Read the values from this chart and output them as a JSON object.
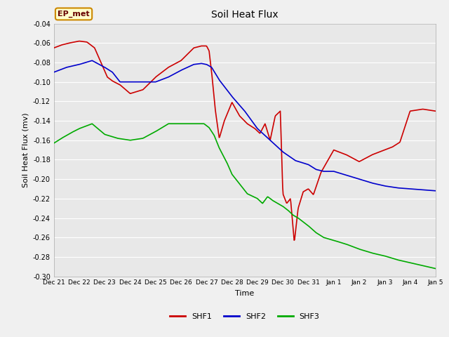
{
  "title": "Soil Heat Flux",
  "ylabel": "Soil Heat Flux (mv)",
  "xlabel": "Time",
  "annotation": "EP_met",
  "ylim": [
    -0.3,
    -0.04
  ],
  "yticks": [
    -0.3,
    -0.28,
    -0.26,
    -0.24,
    -0.22,
    -0.2,
    -0.18,
    -0.16,
    -0.14,
    -0.12,
    -0.1,
    -0.08,
    -0.06,
    -0.04
  ],
  "xtick_labels": [
    "Dec 21",
    "Dec 22",
    "Dec 23",
    "Dec 24",
    "Dec 25",
    "Dec 26",
    "Dec 27",
    "Dec 28",
    "Dec 29",
    "Dec 30",
    "Dec 31",
    "Jan 1",
    "Jan 2",
    "Jan 3",
    "Jan 4",
    "Jan 5"
  ],
  "colors": {
    "SHF1": "#cc0000",
    "SHF2": "#0000cc",
    "SHF3": "#00aa00",
    "fig_bg": "#f0f0f0",
    "plot_bg": "#e8e8e8",
    "grid": "#ffffff",
    "annotation_bg": "#ffffcc",
    "annotation_border": "#cc8800",
    "annotation_text": "#660000"
  },
  "legend_entries": [
    "SHF1",
    "SHF2",
    "SHF3"
  ],
  "shf1_cp_x": [
    0,
    0.3,
    0.6,
    1.0,
    1.3,
    1.6,
    1.9,
    2.1,
    2.3,
    2.6,
    3.0,
    3.5,
    4.0,
    4.5,
    5.0,
    5.5,
    5.8,
    6.0,
    6.1,
    6.2,
    6.35,
    6.5,
    6.7,
    7.0,
    7.3,
    7.6,
    7.9,
    8.1,
    8.3,
    8.5,
    8.7,
    8.9,
    9.0,
    9.15,
    9.3,
    9.45,
    9.6,
    9.8,
    10.0,
    10.2,
    10.5,
    11.0,
    11.5,
    12.0,
    12.5,
    13.0,
    13.3,
    13.6,
    14.0,
    14.5,
    15.0
  ],
  "shf1_cp_y": [
    -0.065,
    -0.062,
    -0.06,
    -0.058,
    -0.059,
    -0.065,
    -0.083,
    -0.095,
    -0.099,
    -0.103,
    -0.112,
    -0.108,
    -0.095,
    -0.085,
    -0.078,
    -0.065,
    -0.063,
    -0.063,
    -0.068,
    -0.09,
    -0.13,
    -0.158,
    -0.14,
    -0.121,
    -0.135,
    -0.143,
    -0.148,
    -0.153,
    -0.143,
    -0.16,
    -0.135,
    -0.13,
    -0.215,
    -0.225,
    -0.22,
    -0.265,
    -0.23,
    -0.213,
    -0.21,
    -0.216,
    -0.193,
    -0.17,
    -0.175,
    -0.182,
    -0.175,
    -0.17,
    -0.167,
    -0.162,
    -0.13,
    -0.128,
    -0.13
  ],
  "shf2_cp_x": [
    0,
    0.5,
    1.0,
    1.5,
    2.0,
    2.3,
    2.6,
    3.0,
    3.5,
    4.0,
    4.5,
    5.0,
    5.5,
    5.8,
    6.0,
    6.2,
    6.5,
    7.0,
    7.5,
    8.0,
    8.5,
    9.0,
    9.5,
    10.0,
    10.3,
    10.6,
    11.0,
    11.5,
    12.0,
    12.5,
    13.0,
    13.5,
    14.0,
    14.5,
    15.0
  ],
  "shf2_cp_y": [
    -0.09,
    -0.085,
    -0.082,
    -0.078,
    -0.085,
    -0.09,
    -0.1,
    -0.1,
    -0.1,
    -0.1,
    -0.095,
    -0.088,
    -0.082,
    -0.081,
    -0.082,
    -0.085,
    -0.098,
    -0.115,
    -0.13,
    -0.148,
    -0.16,
    -0.172,
    -0.181,
    -0.185,
    -0.19,
    -0.192,
    -0.192,
    -0.196,
    -0.2,
    -0.204,
    -0.207,
    -0.209,
    -0.21,
    -0.211,
    -0.212
  ],
  "shf3_cp_x": [
    0,
    0.3,
    0.7,
    1.0,
    1.5,
    2.0,
    2.5,
    3.0,
    3.5,
    4.0,
    4.5,
    5.0,
    5.5,
    5.9,
    6.1,
    6.3,
    6.5,
    6.8,
    7.0,
    7.3,
    7.6,
    8.0,
    8.2,
    8.4,
    8.6,
    8.8,
    9.0,
    9.2,
    9.4,
    9.6,
    9.8,
    10.0,
    10.3,
    10.6,
    11.0,
    11.5,
    12.0,
    12.5,
    13.0,
    13.5,
    14.0,
    14.5,
    15.0
  ],
  "shf3_cp_y": [
    -0.163,
    -0.158,
    -0.152,
    -0.148,
    -0.143,
    -0.154,
    -0.158,
    -0.16,
    -0.158,
    -0.151,
    -0.143,
    -0.143,
    -0.143,
    -0.143,
    -0.147,
    -0.155,
    -0.168,
    -0.183,
    -0.195,
    -0.205,
    -0.215,
    -0.22,
    -0.225,
    -0.218,
    -0.222,
    -0.225,
    -0.228,
    -0.232,
    -0.237,
    -0.24,
    -0.244,
    -0.248,
    -0.255,
    -0.26,
    -0.263,
    -0.267,
    -0.272,
    -0.276,
    -0.279,
    -0.283,
    -0.286,
    -0.289,
    -0.292
  ]
}
